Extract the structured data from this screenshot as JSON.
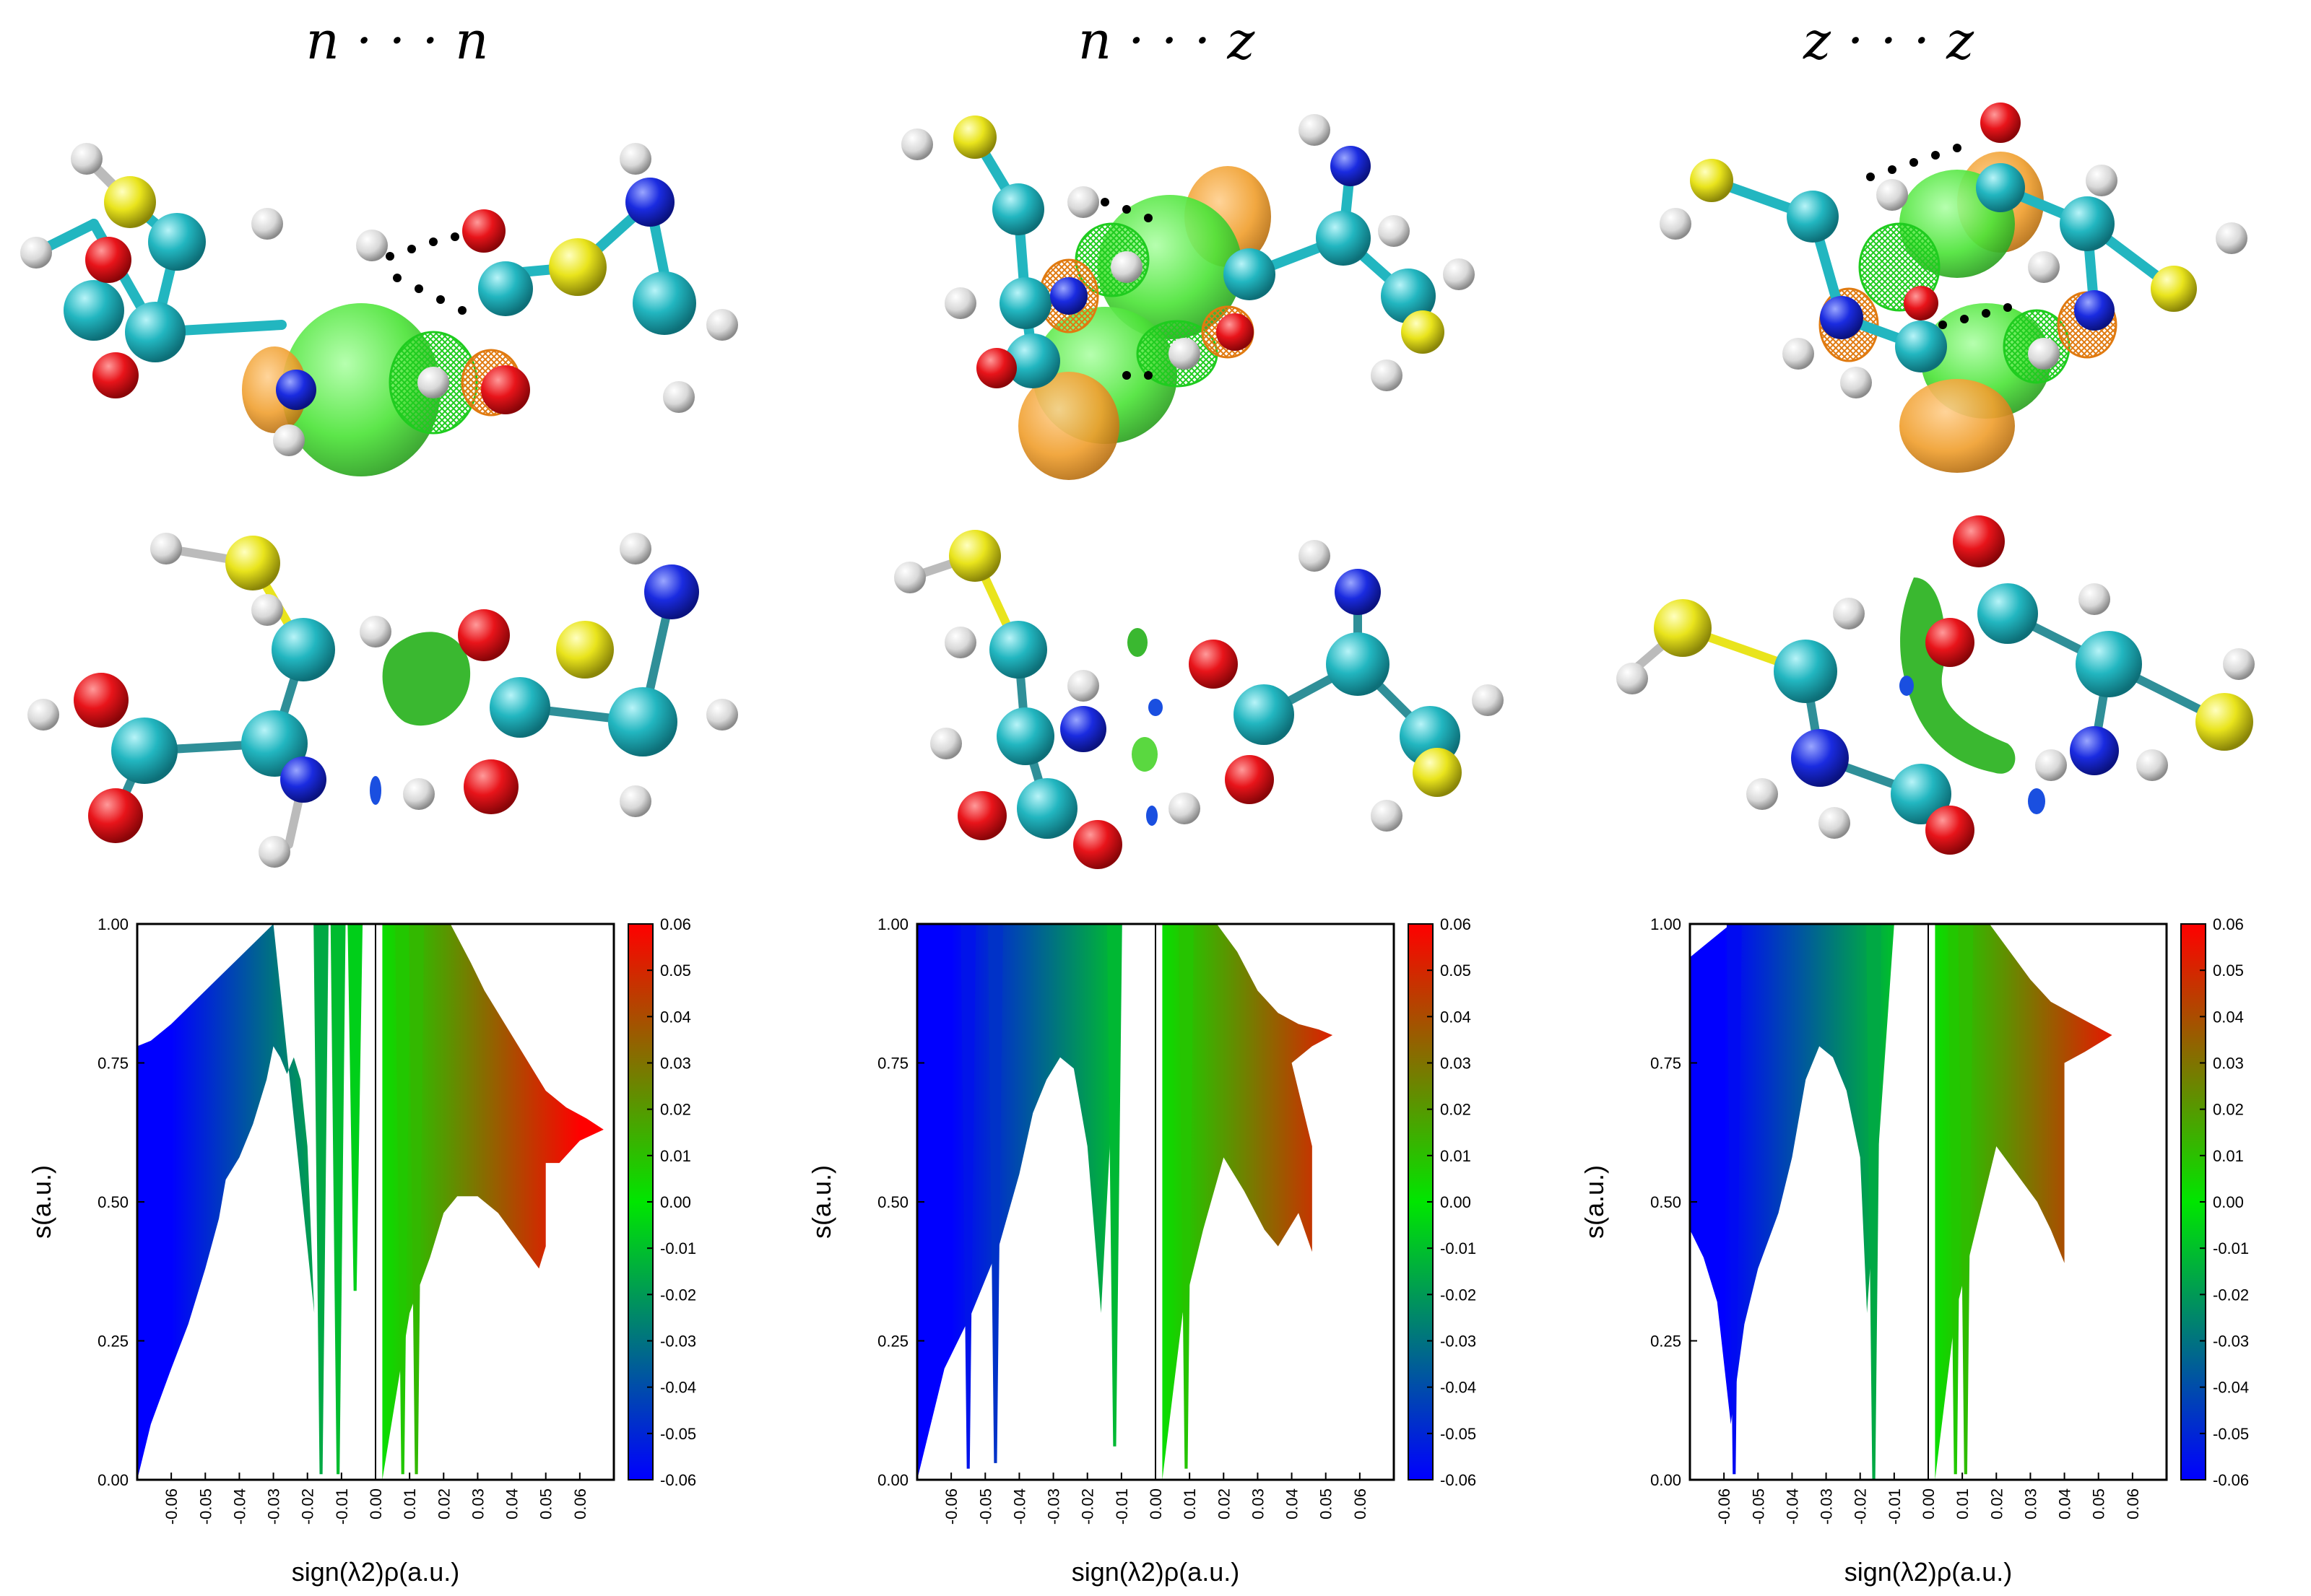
{
  "columns": [
    {
      "title": "n · · · n"
    },
    {
      "title": "n · · · z"
    },
    {
      "title": "z · · · z"
    }
  ],
  "colors": {
    "carbon": "#22b6c0",
    "carbon_dark": "#2f8f98",
    "oxygen": "#e8141a",
    "nitrogen": "#1a2be0",
    "sulfur": "#e9e41c",
    "hydrogen": "#e6e6e6",
    "iso_green": "#4ee43a",
    "iso_orange": "#f0a030",
    "mesh_green": "#1fcc1f",
    "mesh_orange": "#e07a10"
  },
  "plot_common": {
    "xlabel": "sign(λ2)ρ(a.u.)",
    "ylabel": "s(a.u.)",
    "xticks": [
      "-0.06",
      "-0.05",
      "-0.04",
      "-0.03",
      "-0.02",
      "-0.01",
      "0.00",
      "0.01",
      "0.02",
      "0.03",
      "0.04",
      "0.05",
      "0.06"
    ],
    "yticks": [
      "0.00",
      "0.25",
      "0.50",
      "0.75",
      "1.00"
    ],
    "colorbar_ticks": [
      "-0.06",
      "-0.05",
      "-0.04",
      "-0.03",
      "-0.02",
      "-0.01",
      "0.00",
      "0.01",
      "0.02",
      "0.03",
      "0.04",
      "0.05",
      "0.06"
    ]
  },
  "chart_data": [
    {
      "type": "scatter",
      "title": "n · · · n",
      "xlabel": "sign(λ2)ρ(a.u.)",
      "ylabel": "s(a.u.)",
      "xlim": [
        -0.07,
        0.07
      ],
      "ylim": [
        0.0,
        1.0
      ],
      "colorbar_range": [
        -0.06,
        0.06
      ],
      "spikes": [
        {
          "x": -0.016,
          "s_min": 0.01
        },
        {
          "x": -0.011,
          "s_min": 0.01
        },
        {
          "x": -0.006,
          "s_min": 0.34
        },
        {
          "x": 0.008,
          "s_min": 0.01
        },
        {
          "x": 0.012,
          "s_min": 0.01
        }
      ],
      "left_upper": [
        [
          -0.07,
          0.78
        ],
        [
          -0.066,
          0.79
        ],
        [
          -0.06,
          0.82
        ],
        [
          -0.055,
          0.85
        ],
        [
          -0.05,
          0.88
        ],
        [
          -0.045,
          0.91
        ],
        [
          -0.04,
          0.94
        ],
        [
          -0.035,
          0.97
        ],
        [
          -0.03,
          1.0
        ]
      ],
      "left_lower": [
        [
          -0.07,
          0.0
        ],
        [
          -0.066,
          0.1
        ],
        [
          -0.06,
          0.2
        ],
        [
          -0.055,
          0.28
        ],
        [
          -0.05,
          0.38
        ],
        [
          -0.046,
          0.47
        ],
        [
          -0.044,
          0.54
        ],
        [
          -0.04,
          0.58
        ],
        [
          -0.036,
          0.64
        ],
        [
          -0.032,
          0.72
        ],
        [
          -0.03,
          0.78
        ],
        [
          -0.028,
          0.76
        ],
        [
          -0.026,
          0.73
        ],
        [
          -0.024,
          0.76
        ],
        [
          -0.022,
          0.72
        ],
        [
          -0.02,
          0.6
        ],
        [
          -0.018,
          0.3
        ]
      ],
      "right_upper": [
        [
          0.002,
          1.0
        ],
        [
          0.022,
          1.0
        ],
        [
          0.028,
          0.93
        ],
        [
          0.032,
          0.88
        ],
        [
          0.038,
          0.82
        ],
        [
          0.042,
          0.78
        ],
        [
          0.046,
          0.74
        ],
        [
          0.05,
          0.7
        ],
        [
          0.056,
          0.67
        ],
        [
          0.062,
          0.65
        ],
        [
          0.067,
          0.63
        ],
        [
          0.06,
          0.61
        ],
        [
          0.054,
          0.57
        ]
      ],
      "right_lower": [
        [
          0.002,
          0.0
        ],
        [
          0.01,
          0.3
        ],
        [
          0.016,
          0.4
        ],
        [
          0.02,
          0.48
        ],
        [
          0.024,
          0.51
        ],
        [
          0.03,
          0.51
        ],
        [
          0.036,
          0.48
        ],
        [
          0.042,
          0.43
        ],
        [
          0.048,
          0.38
        ],
        [
          0.05,
          0.42
        ],
        [
          0.05,
          0.57
        ]
      ]
    },
    {
      "type": "scatter",
      "title": "n · · · z",
      "xlabel": "sign(λ2)ρ(a.u.)",
      "ylabel": "s(a.u.)",
      "xlim": [
        -0.07,
        0.07
      ],
      "ylim": [
        0.0,
        1.0
      ],
      "colorbar_range": [
        -0.06,
        0.06
      ],
      "spikes": [
        {
          "x": -0.055,
          "s_min": 0.02
        },
        {
          "x": -0.047,
          "s_min": 0.03
        },
        {
          "x": -0.012,
          "s_min": 0.06
        },
        {
          "x": 0.009,
          "s_min": 0.02
        }
      ],
      "left_upper": [
        [
          -0.07,
          1.0
        ],
        [
          -0.01,
          1.0
        ]
      ],
      "left_lower": [
        [
          -0.07,
          0.0
        ],
        [
          -0.066,
          0.1
        ],
        [
          -0.062,
          0.2
        ],
        [
          -0.058,
          0.25
        ],
        [
          -0.054,
          0.3
        ],
        [
          -0.05,
          0.36
        ],
        [
          -0.046,
          0.42
        ],
        [
          -0.04,
          0.55
        ],
        [
          -0.036,
          0.66
        ],
        [
          -0.032,
          0.72
        ],
        [
          -0.028,
          0.76
        ],
        [
          -0.024,
          0.74
        ],
        [
          -0.02,
          0.6
        ],
        [
          -0.016,
          0.3
        ]
      ],
      "right_upper": [
        [
          0.002,
          1.0
        ],
        [
          0.018,
          1.0
        ],
        [
          0.024,
          0.95
        ],
        [
          0.03,
          0.88
        ],
        [
          0.036,
          0.84
        ],
        [
          0.042,
          0.82
        ],
        [
          0.048,
          0.81
        ],
        [
          0.052,
          0.8
        ],
        [
          0.046,
          0.78
        ],
        [
          0.04,
          0.75
        ]
      ],
      "right_lower": [
        [
          0.002,
          0.0
        ],
        [
          0.008,
          0.3
        ],
        [
          0.014,
          0.45
        ],
        [
          0.02,
          0.58
        ],
        [
          0.026,
          0.52
        ],
        [
          0.032,
          0.45
        ],
        [
          0.036,
          0.42
        ],
        [
          0.042,
          0.48
        ],
        [
          0.046,
          0.41
        ],
        [
          0.046,
          0.6
        ]
      ]
    },
    {
      "type": "scatter",
      "title": "z · · · z",
      "xlabel": "sign(λ2)ρ(a.u.)",
      "ylabel": "s(a.u.)",
      "xlim": [
        -0.07,
        0.07
      ],
      "ylim": [
        0.0,
        1.0
      ],
      "colorbar_range": [
        -0.06,
        0.06
      ],
      "spikes": [
        {
          "x": -0.057,
          "s_min": 0.01
        },
        {
          "x": -0.016,
          "s_min": 0.0
        },
        {
          "x": 0.008,
          "s_min": 0.01
        },
        {
          "x": 0.011,
          "s_min": 0.01
        }
      ],
      "left_upper": [
        [
          -0.07,
          0.94
        ],
        [
          -0.066,
          0.96
        ],
        [
          -0.062,
          0.98
        ],
        [
          -0.058,
          1.0
        ],
        [
          -0.01,
          1.0
        ]
      ],
      "left_lower": [
        [
          -0.07,
          0.45
        ],
        [
          -0.066,
          0.4
        ],
        [
          -0.062,
          0.32
        ],
        [
          -0.058,
          0.1
        ],
        [
          -0.054,
          0.28
        ],
        [
          -0.05,
          0.38
        ],
        [
          -0.044,
          0.48
        ],
        [
          -0.04,
          0.58
        ],
        [
          -0.036,
          0.72
        ],
        [
          -0.032,
          0.78
        ],
        [
          -0.028,
          0.76
        ],
        [
          -0.024,
          0.7
        ],
        [
          -0.02,
          0.58
        ],
        [
          -0.018,
          0.3
        ]
      ],
      "right_upper": [
        [
          0.002,
          1.0
        ],
        [
          0.018,
          1.0
        ],
        [
          0.024,
          0.95
        ],
        [
          0.03,
          0.9
        ],
        [
          0.036,
          0.86
        ],
        [
          0.042,
          0.84
        ],
        [
          0.048,
          0.82
        ],
        [
          0.054,
          0.8
        ],
        [
          0.046,
          0.77
        ],
        [
          0.04,
          0.75
        ],
        [
          0.04,
          0.7
        ]
      ],
      "right_lower": [
        [
          0.002,
          0.0
        ],
        [
          0.008,
          0.3
        ],
        [
          0.014,
          0.45
        ],
        [
          0.02,
          0.6
        ],
        [
          0.026,
          0.55
        ],
        [
          0.032,
          0.5
        ],
        [
          0.036,
          0.45
        ],
        [
          0.04,
          0.39
        ],
        [
          0.04,
          0.6
        ]
      ]
    }
  ]
}
